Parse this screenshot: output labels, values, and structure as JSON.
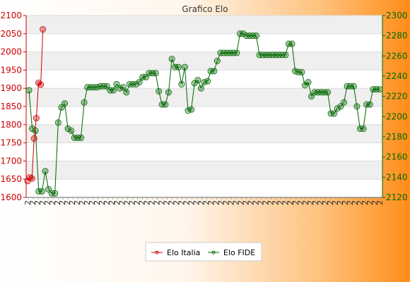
{
  "chart_data": {
    "type": "line",
    "title": "Grafico Elo",
    "y_left": {
      "min": 1600,
      "max": 2100,
      "step": 50,
      "ticks": [
        "1600",
        "1650",
        "1700",
        "1750",
        "1800",
        "1850",
        "1900",
        "1950",
        "2000",
        "2050",
        "2100"
      ]
    },
    "y_right": {
      "min": 2120,
      "max": 2300,
      "step": 20,
      "ticks": [
        "2120",
        "2140",
        "2160",
        "2180",
        "2200",
        "2220",
        "2240",
        "2260",
        "2280",
        "2300"
      ]
    },
    "x_label_prefix": "2",
    "legend": {
      "placement": "bottom",
      "items": [
        {
          "name": "Elo Italia",
          "color": "#cc0000"
        },
        {
          "name": "Elo FIDE",
          "color": "#006600"
        }
      ]
    },
    "series": [
      {
        "name": "Elo Italia",
        "axis": "left",
        "color": "#cc0000",
        "values": [
          1645,
          1655,
          1652,
          1762,
          1818,
          1915,
          1910,
          2062
        ]
      },
      {
        "name": "Elo FIDE",
        "axis": "right",
        "color": "#006600",
        "values": [
          2226,
          2188,
          2186,
          2126,
          2126,
          2146,
          2128,
          2124,
          2124,
          2194,
          2209,
          2213,
          2188,
          2186,
          2179,
          2179,
          2179,
          2214,
          2229,
          2229,
          2229,
          2229,
          2230,
          2230,
          2230,
          2226,
          2226,
          2232,
          2228,
          2229,
          2224,
          2232,
          2232,
          2232,
          2234,
          2239,
          2239,
          2243,
          2243,
          2243,
          2225,
          2212,
          2212,
          2224,
          2257,
          2249,
          2249,
          2232,
          2249,
          2206,
          2207,
          2233,
          2236,
          2228,
          2234,
          2235,
          2245,
          2245,
          2255,
          2263,
          2263,
          2263,
          2263,
          2263,
          2263,
          2282,
          2282,
          2280,
          2280,
          2280,
          2280,
          2261,
          2261,
          2261,
          2261,
          2261,
          2261,
          2261,
          2261,
          2261,
          2272,
          2272,
          2245,
          2244,
          2244,
          2231,
          2234,
          2220,
          2224,
          2224,
          2224,
          2224,
          2224,
          2203,
          2203,
          2208,
          2210,
          2214,
          2230,
          2230,
          2230,
          2210,
          2188,
          2188,
          2212,
          2212,
          2227,
          2227,
          2227
        ]
      }
    ]
  }
}
